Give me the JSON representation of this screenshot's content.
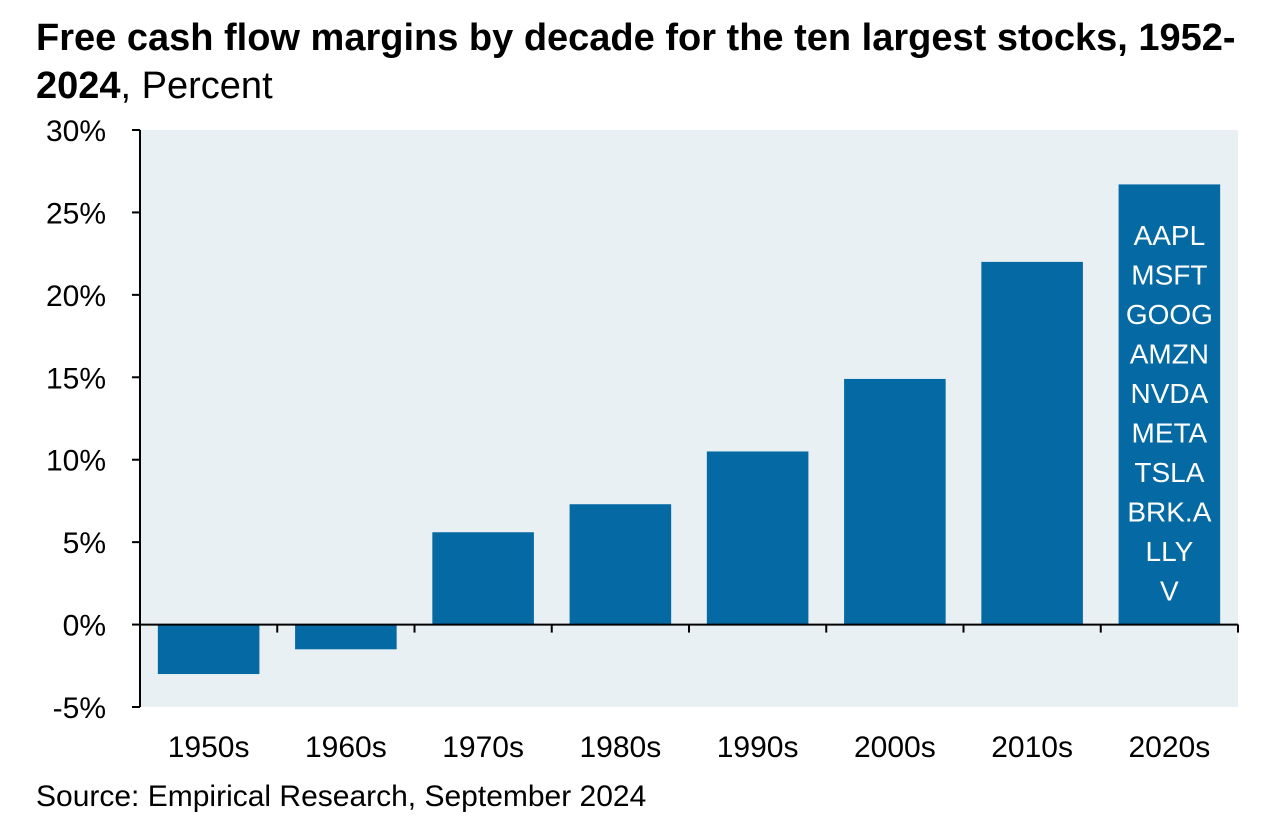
{
  "title": {
    "bold": "Free cash flow margins by decade for the ten largest stocks, 1952-2024",
    "unit": ", Percent"
  },
  "source": "Source: Empirical Research, September 2024",
  "colors": {
    "bar": "#0569a3",
    "plot_bg": "#e8f0f3",
    "axis": "#000000",
    "bar_text": "#ffffff"
  },
  "chart_data": {
    "type": "bar",
    "categories": [
      "1950s",
      "1960s",
      "1970s",
      "1980s",
      "1990s",
      "2000s",
      "2010s",
      "2020s"
    ],
    "values": [
      -3.0,
      -1.5,
      5.6,
      7.3,
      10.5,
      14.9,
      22.0,
      26.7
    ],
    "ylim": [
      -5,
      30
    ],
    "yticks": [
      -5,
      0,
      5,
      10,
      15,
      20,
      25,
      30
    ],
    "ytick_labels": [
      "-5%",
      "0%",
      "5%",
      "10%",
      "15%",
      "20%",
      "25%",
      "30%"
    ],
    "grid": false,
    "bar_annotation": {
      "category": "2020s",
      "lines": [
        "AAPL",
        "MSFT",
        "GOOG",
        "AMZN",
        "NVDA",
        "META",
        "TSLA",
        "BRK.A",
        "LLY",
        "V"
      ]
    }
  }
}
